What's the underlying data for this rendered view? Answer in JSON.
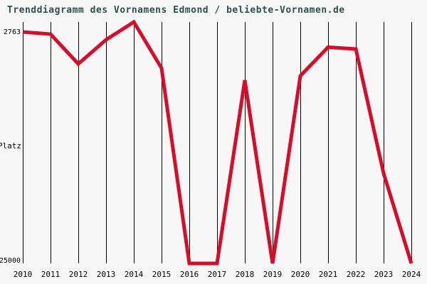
{
  "header": {
    "title": "Trenddiagramm des Vornamens Edmond / beliebte-Vornamen.de",
    "title_color": "#2f4f4f"
  },
  "y_axis": {
    "top_label": "2763",
    "center_label": "Platz",
    "bottom_label": "25000"
  },
  "colors": {
    "background": "#f7f7f7",
    "line": "#d80c28",
    "grid": "#000000",
    "text": "#000000",
    "title": "#2f4f4f"
  },
  "chart_data": {
    "type": "line",
    "title": "Trenddiagramm des Vornamens Edmond / beliebte-Vornamen.de",
    "series_name": "Edmond",
    "x": [
      2010,
      2011,
      2012,
      2013,
      2014,
      2015,
      2016,
      2017,
      2018,
      2019,
      2020,
      2021,
      2022,
      2023,
      2024
    ],
    "values": [
      3680,
      3875,
      6620,
      4400,
      2763,
      7015,
      25000,
      25000,
      8125,
      25000,
      7730,
      5085,
      5250,
      16695,
      25000
    ],
    "xlabel": "",
    "ylabel": "Platz",
    "ylim": [
      2763,
      25000
    ],
    "y_axis_inverted": true,
    "y_tick_labels": [
      "2763",
      "25000"
    ],
    "grid": "vertical-only",
    "legend_position": "none",
    "line_color": "#d80c28",
    "line_width": 5
  }
}
